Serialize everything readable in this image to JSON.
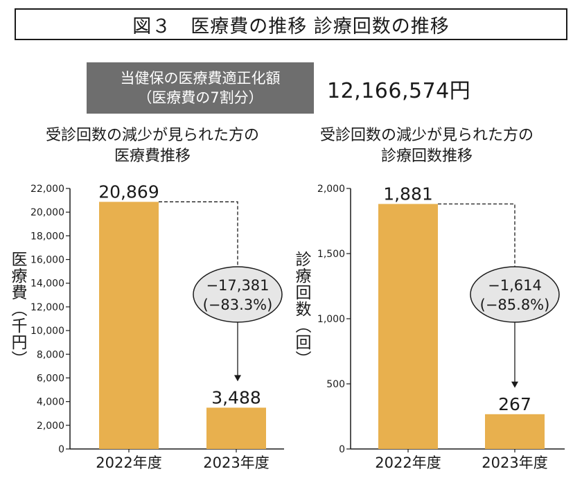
{
  "figure_title": "図３　医療費の推移 診療回数の推移",
  "summary": {
    "label_line1": "当健保の医療費適正化額",
    "label_line2": "（医療費の7割分）",
    "value": "12,166,574円"
  },
  "chart_data": [
    {
      "type": "bar",
      "title_line1": "受診回数の減少が見られた方の",
      "title_line2": "医療費推移",
      "ylabel": "医療費（千円）",
      "categories": [
        "2022年度",
        "2023年度"
      ],
      "values": [
        20869,
        3488
      ],
      "value_labels": [
        "20,869",
        "3,488"
      ],
      "ylim": [
        0,
        22000
      ],
      "yticks": [
        0,
        2000,
        4000,
        6000,
        8000,
        10000,
        12000,
        14000,
        16000,
        18000,
        20000,
        22000
      ],
      "ytick_labels": [
        "0",
        "2,000",
        "4,000",
        "6,000",
        "8,000",
        "10,000",
        "12,000",
        "14,000",
        "16,000",
        "18,000",
        "20,000",
        "22,000"
      ],
      "change_line1": "−17,381",
      "change_line2": "(−83.3%)",
      "bar_color": "#e8b04e"
    },
    {
      "type": "bar",
      "title_line1": "受診回数の減少が見られた方の",
      "title_line2": "診療回数推移",
      "ylabel": "診療回数（回）",
      "categories": [
        "2022年度",
        "2023年度"
      ],
      "values": [
        1881,
        267
      ],
      "value_labels": [
        "1,881",
        "267"
      ],
      "ylim": [
        0,
        2000
      ],
      "yticks": [
        0,
        500,
        1000,
        1500,
        2000
      ],
      "ytick_labels": [
        "0",
        "500",
        "1,000",
        "1,500",
        "2,000"
      ],
      "change_line1": "−1,614",
      "change_line2": "(−85.8%)",
      "bar_color": "#e8b04e"
    }
  ]
}
